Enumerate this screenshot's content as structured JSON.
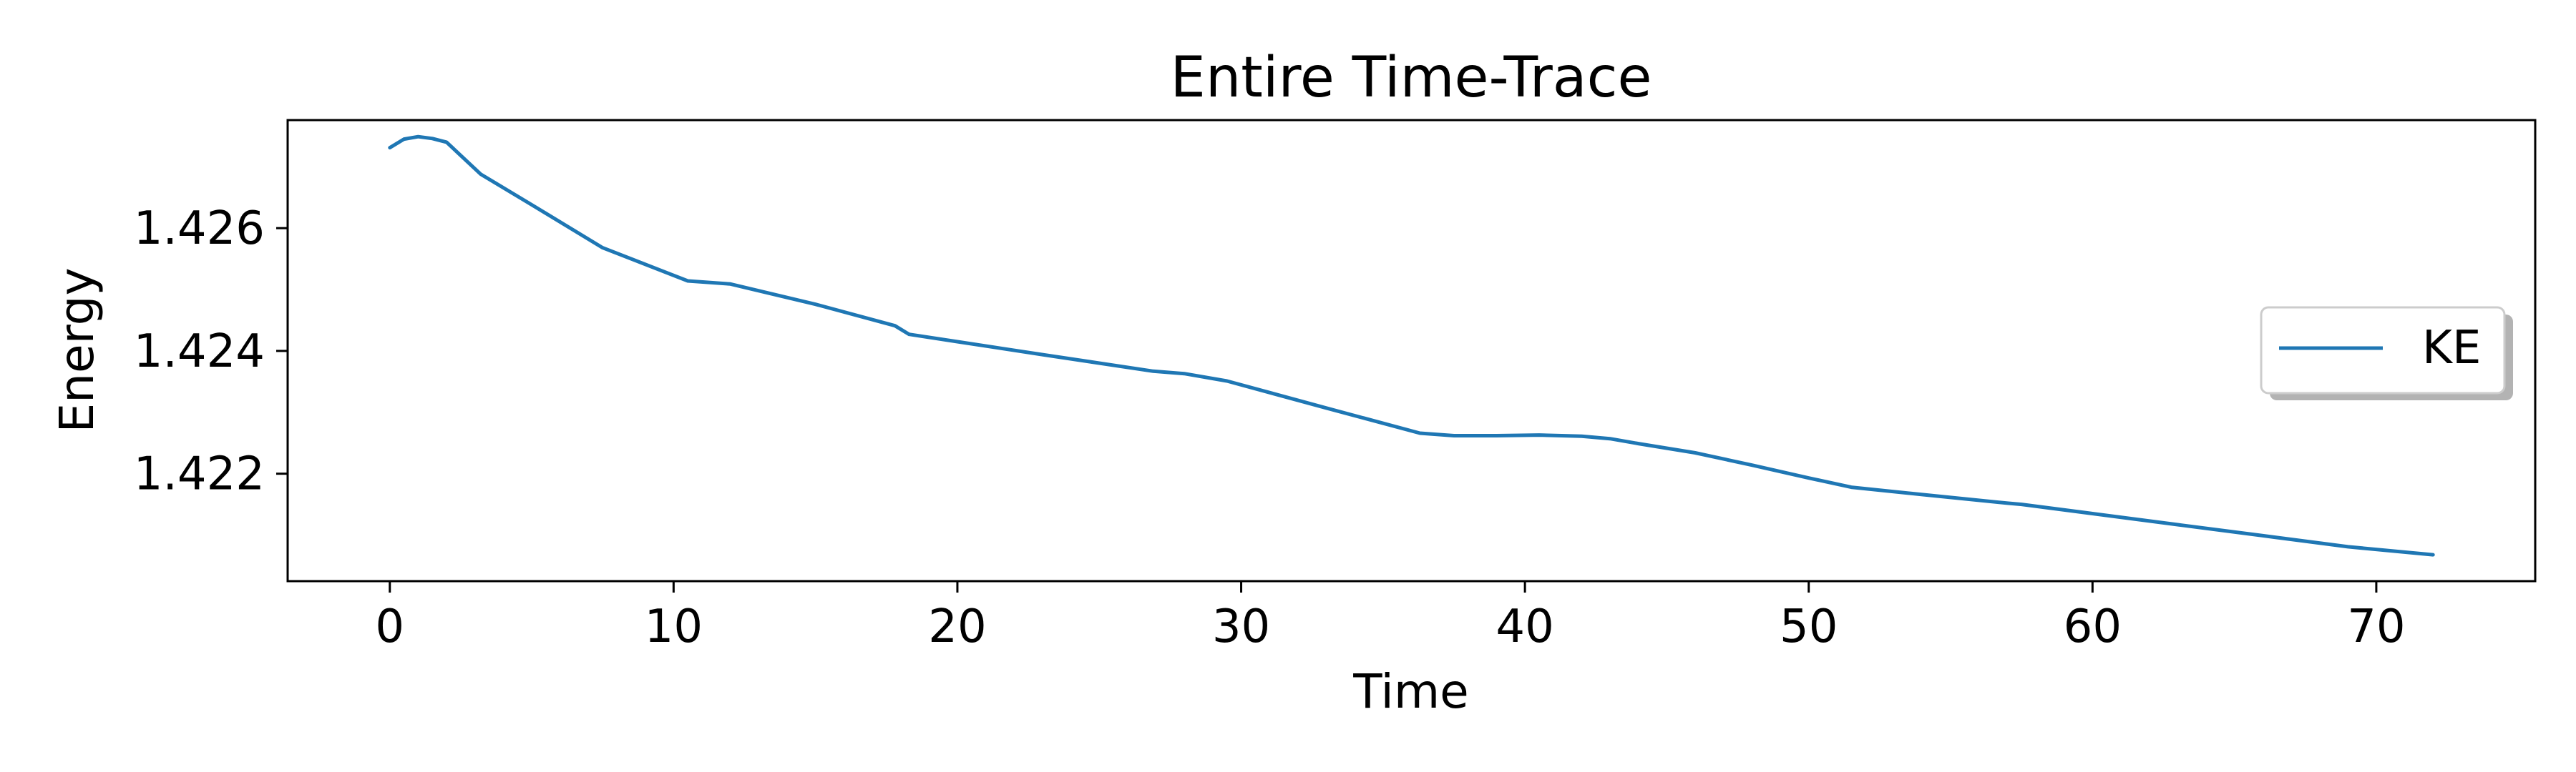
{
  "chart_data": {
    "type": "line",
    "title": "Entire Time-Trace",
    "xlabel": "Time",
    "ylabel": "Energy",
    "xlim": [
      -3.6,
      75.6
    ],
    "ylim": [
      1.42025,
      1.42776
    ],
    "x_ticks": [
      0,
      10,
      20,
      30,
      40,
      50,
      60,
      70
    ],
    "x_tick_labels": [
      "0",
      "10",
      "20",
      "30",
      "40",
      "50",
      "60",
      "70"
    ],
    "y_ticks": [
      1.422,
      1.424,
      1.426
    ],
    "y_tick_labels": [
      "1.422",
      "1.424",
      "1.426"
    ],
    "grid": false,
    "legend_position": "center-right",
    "series": [
      {
        "name": "KE",
        "color": "#1f77b4",
        "x": [
          0,
          0.5,
          1,
          1.5,
          2,
          3.2,
          5,
          7.5,
          10.5,
          12,
          15,
          17.8,
          18.3,
          20,
          23,
          26.9,
          28,
          29.5,
          33,
          36.3,
          37.5,
          39,
          40.5,
          42,
          43,
          44,
          46,
          48,
          50,
          51.5,
          54,
          57,
          57.5,
          60,
          63,
          66,
          69,
          72
        ],
        "y": [
          1.42731,
          1.42745,
          1.42749,
          1.42746,
          1.4274,
          1.42688,
          1.42638,
          1.42568,
          1.42514,
          1.42509,
          1.42476,
          1.42441,
          1.42427,
          1.42415,
          1.42394,
          1.42367,
          1.42363,
          1.42351,
          1.42307,
          1.42266,
          1.42262,
          1.42262,
          1.42263,
          1.42261,
          1.42257,
          1.42249,
          1.42234,
          1.42214,
          1.42193,
          1.42178,
          1.42166,
          1.42152,
          1.4215,
          1.42135,
          1.42117,
          1.42099,
          1.42081,
          1.42068
        ]
      }
    ]
  }
}
